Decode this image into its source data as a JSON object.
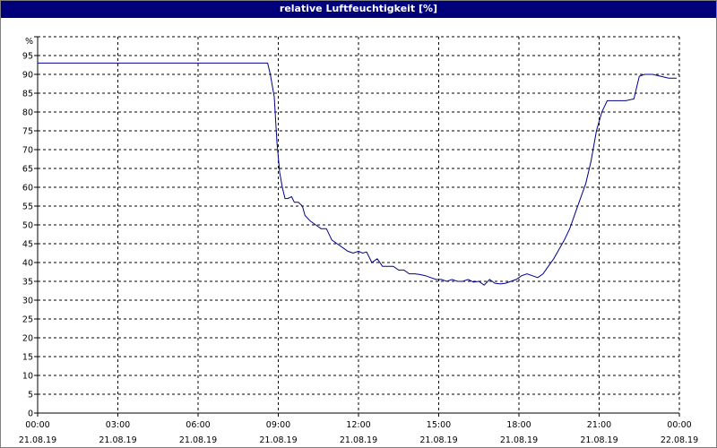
{
  "window": {
    "title": "relative Luftfeuchtigkeit [%]"
  },
  "colors": {
    "title_bar": "#00007a",
    "series": "#00008b",
    "grid": "#000000",
    "background": "#ffffff"
  },
  "chart_data": {
    "type": "line",
    "title": "relative Luftfeuchtigkeit [%]",
    "ylabel": "%",
    "xlabel": "",
    "ylim": [
      0,
      100
    ],
    "xlim": [
      0,
      24
    ],
    "grid": true,
    "grid_style": "dashed",
    "legend": "none",
    "y_ticks": [
      "0",
      "5",
      "10",
      "15",
      "20",
      "25",
      "30",
      "35",
      "40",
      "45",
      "50",
      "55",
      "60",
      "65",
      "70",
      "75",
      "80",
      "85",
      "90",
      "95"
    ],
    "x_ticks": [
      {
        "time": "00:00",
        "date": "21.08.19"
      },
      {
        "time": "03:00",
        "date": "21.08.19"
      },
      {
        "time": "06:00",
        "date": "21.08.19"
      },
      {
        "time": "09:00",
        "date": "21.08.19"
      },
      {
        "time": "12:00",
        "date": "21.08.19"
      },
      {
        "time": "15:00",
        "date": "21.08.19"
      },
      {
        "time": "18:00",
        "date": "21.08.19"
      },
      {
        "time": "21:00",
        "date": "21.08.19"
      },
      {
        "time": "00:00",
        "date": "22.08.19"
      }
    ],
    "series": [
      {
        "x": [
          0,
          1,
          2,
          3,
          4,
          5,
          6,
          7,
          8,
          8.6,
          8.7,
          8.85,
          8.95,
          9.05,
          9.15,
          9.25,
          9.35,
          9.5,
          9.6,
          9.75,
          9.9,
          10,
          10.2,
          10.4,
          10.6,
          10.8,
          11,
          11.2,
          11.4,
          11.6,
          11.8,
          12,
          12.15,
          12.3,
          12.5,
          12.7,
          12.9,
          13.1,
          13.3,
          13.5,
          13.7,
          13.9,
          14.1,
          14.3,
          14.5,
          14.7,
          14.9,
          15.1,
          15.3,
          15.5,
          15.7,
          15.9,
          16.1,
          16.3,
          16.5,
          16.7,
          16.9,
          17.1,
          17.3,
          17.5,
          17.7,
          17.9,
          18.1,
          18.3,
          18.5,
          18.7,
          18.9,
          19.1,
          19.3,
          19.5,
          19.7,
          19.9,
          20.1,
          20.3,
          20.5,
          20.7,
          20.9,
          21.1,
          21.3,
          21.5,
          21.7,
          22,
          22.3,
          22.5,
          22.7,
          23,
          23.3,
          23.6,
          23.9
        ],
        "y": [
          93,
          93,
          93,
          93,
          93,
          93,
          93,
          93,
          93,
          93,
          90,
          84,
          72,
          64,
          60,
          57,
          57,
          57.5,
          56,
          56,
          55,
          52.5,
          51,
          50,
          49,
          49,
          46,
          45,
          44,
          43,
          42.5,
          43,
          42.5,
          42.8,
          40,
          41,
          39,
          39,
          39,
          38,
          38,
          37,
          37,
          36.8,
          36.5,
          36,
          35.5,
          35.5,
          35,
          35.5,
          35,
          35,
          35.5,
          34.8,
          35,
          34,
          35.5,
          34.5,
          34.3,
          34.5,
          35,
          35.5,
          36.5,
          37,
          36.5,
          36,
          37,
          39,
          41,
          43.5,
          46,
          49,
          53,
          57,
          61,
          67,
          75,
          80,
          83,
          83,
          83,
          83,
          83.5,
          89.5,
          90,
          90,
          89.5,
          89,
          89
        ]
      }
    ]
  }
}
